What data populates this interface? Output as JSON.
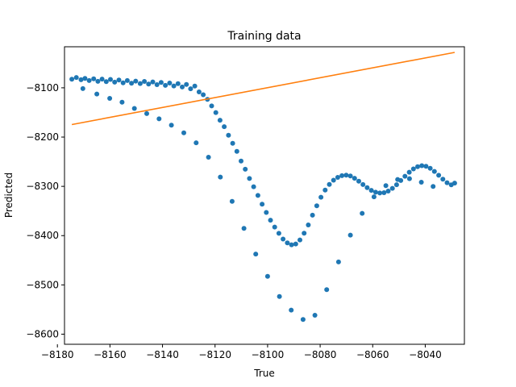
{
  "chart_data": {
    "type": "scatter",
    "title": "Training data",
    "xlabel": "True",
    "ylabel": "Predicted",
    "xlim": [
      -8177.3,
      -8025.1
    ],
    "ylim": [
      -8620.5,
      -8016.7
    ],
    "xticks": [
      -8180,
      -8160,
      -8140,
      -8120,
      -8100,
      -8080,
      -8060,
      -8040
    ],
    "xtick_labels": [
      "−8180",
      "−8160",
      "−8140",
      "−8120",
      "−8100",
      "−8080",
      "−8060",
      "−8040"
    ],
    "yticks": [
      -8600,
      -8500,
      -8400,
      -8300,
      -8200,
      -8100
    ],
    "ytick_labels": [
      "−8600",
      "−8500",
      "−8400",
      "−8300",
      "−8200",
      "−8100"
    ],
    "grid": false,
    "colors": {
      "points": "#1f77b4",
      "line": "#ff7f0e"
    },
    "series": [
      {
        "kind": "points",
        "x": [
          -8174.5,
          -8172.8,
          -8171.0,
          -8169.5,
          -8167.9,
          -8166.2,
          -8164.6,
          -8163.0,
          -8161.4,
          -8159.8,
          -8158.2,
          -8156.6,
          -8155.0,
          -8153.4,
          -8151.8,
          -8150.2,
          -8148.5,
          -8146.9,
          -8145.3,
          -8143.7,
          -8142.1,
          -8140.5,
          -8138.9,
          -8137.3,
          -8135.7,
          -8134.1,
          -8132.5,
          -8130.9,
          -8129.3,
          -8127.7,
          -8126.1,
          -8124.5,
          -8122.9,
          -8121.3,
          -8119.7,
          -8118.1,
          -8116.5,
          -8114.9,
          -8113.3,
          -8111.7,
          -8110.1,
          -8108.5,
          -8106.9,
          -8105.3,
          -8103.7,
          -8102.1,
          -8100.5,
          -8098.9,
          -8097.3,
          -8095.7,
          -8094.1,
          -8092.5,
          -8090.9,
          -8089.3,
          -8087.7,
          -8086.1,
          -8084.5,
          -8082.9,
          -8081.3,
          -8079.7,
          -8078.1,
          -8076.5,
          -8074.9,
          -8073.3,
          -8071.7,
          -8070.1,
          -8068.5,
          -8066.9,
          -8065.3,
          -8063.7,
          -8062.1,
          -8060.5,
          -8058.9,
          -8057.3,
          -8055.7,
          -8054.1,
          -8052.5,
          -8050.9,
          -8049.3,
          -8047.7,
          -8046.1,
          -8044.5,
          -8042.9,
          -8041.3,
          -8039.7,
          -8038.1,
          -8036.5,
          -8034.9,
          -8033.3,
          -8031.7,
          -8030.1,
          -8028.8,
          -8170.3,
          -8165.0,
          -8160.1,
          -8155.4,
          -8150.7,
          -8146.0,
          -8141.3,
          -8136.6,
          -8131.9,
          -8127.2,
          -8122.5,
          -8118.0,
          -8113.5,
          -8109.0,
          -8104.5,
          -8100.0,
          -8095.5,
          -8091.0,
          -8086.5,
          -8082.0,
          -8077.5,
          -8073.0,
          -8068.5,
          -8064.0,
          -8059.5,
          -8055.0,
          -8050.5,
          -8046.0,
          -8041.5,
          -8037.0
        ],
        "y": [
          -8082.4,
          -8079.1,
          -8083.6,
          -8080.8,
          -8085.2,
          -8081.7,
          -8086.9,
          -8082.3,
          -8087.5,
          -8083.0,
          -8088.6,
          -8084.2,
          -8089.8,
          -8085.3,
          -8090.7,
          -8086.4,
          -8091.3,
          -8087.0,
          -8092.4,
          -8088.1,
          -8093.6,
          -8089.2,
          -8095.0,
          -8090.4,
          -8096.2,
          -8091.6,
          -8098.3,
          -8093.1,
          -8102.0,
          -8096.5,
          -8108.3,
          -8114.0,
          -8123.5,
          -8136.8,
          -8150.2,
          -8165.7,
          -8178.9,
          -8196.4,
          -8212.8,
          -8229.1,
          -8248.6,
          -8265.3,
          -8284.0,
          -8300.7,
          -8318.4,
          -8336.2,
          -8352.9,
          -8368.7,
          -8382.6,
          -8395.4,
          -8406.9,
          -8414.8,
          -8418.5,
          -8416.9,
          -8408.7,
          -8395.1,
          -8378.3,
          -8358.6,
          -8339.4,
          -8322.0,
          -8307.7,
          -8296.1,
          -8287.5,
          -8281.8,
          -8278.4,
          -8277.2,
          -8279.0,
          -8283.6,
          -8289.7,
          -8296.3,
          -8302.8,
          -8308.1,
          -8311.9,
          -8313.5,
          -8312.8,
          -8309.6,
          -8304.1,
          -8296.7,
          -8288.2,
          -8279.5,
          -8271.3,
          -8264.6,
          -8260.0,
          -8258.1,
          -8259.3,
          -8263.4,
          -8269.7,
          -8277.5,
          -8285.6,
          -8292.6,
          -8296.8,
          -8293.4,
          -8101.7,
          -8112.6,
          -8121.5,
          -8129.3,
          -8141.8,
          -8152.4,
          -8163.0,
          -8175.8,
          -8191.3,
          -8211.6,
          -8240.9,
          -8281.2,
          -8330.6,
          -8385.3,
          -8437.4,
          -8482.5,
          -8523.6,
          -8551.2,
          -8570.3,
          -8561.6,
          -8509.8,
          -8453.5,
          -8399.0,
          -8354.7,
          -8321.2,
          -8298.5,
          -8286.0,
          -8284.4,
          -8291.6,
          -8300.1
        ]
      },
      {
        "kind": "line",
        "x": [
          -8174.5,
          -8028.8
        ],
        "y": [
          -8174.6,
          -8028.2
        ]
      }
    ]
  }
}
